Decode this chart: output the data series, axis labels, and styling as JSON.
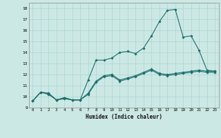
{
  "xlabel": "Humidex (Indice chaleur)",
  "xlim": [
    -0.5,
    23.5
  ],
  "ylim": [
    9,
    18.5
  ],
  "xticks": [
    0,
    1,
    2,
    3,
    4,
    5,
    6,
    7,
    8,
    9,
    10,
    11,
    12,
    13,
    14,
    15,
    16,
    17,
    18,
    19,
    20,
    21,
    22,
    23
  ],
  "yticks": [
    9,
    10,
    11,
    12,
    13,
    14,
    15,
    16,
    17,
    18
  ],
  "bg_color": "#cce8e5",
  "grid_color": "#aad4d0",
  "line_color": "#1a6e6a",
  "series1_x": [
    0,
    1,
    2,
    3,
    4,
    5,
    6,
    7,
    8,
    9,
    10,
    11,
    12,
    13,
    14,
    15,
    16,
    17,
    18,
    19,
    20,
    21,
    22,
    23
  ],
  "series1_y": [
    9.6,
    10.4,
    10.3,
    9.7,
    9.9,
    9.7,
    9.7,
    10.3,
    11.4,
    11.9,
    12.0,
    11.5,
    11.7,
    11.9,
    12.2,
    12.5,
    12.1,
    12.0,
    12.1,
    12.2,
    12.3,
    12.4,
    12.3,
    12.3
  ],
  "series2_x": [
    0,
    1,
    2,
    3,
    4,
    5,
    6,
    7,
    8,
    9,
    10,
    11,
    12,
    13,
    14,
    15,
    16,
    17,
    18,
    19,
    20,
    21,
    22,
    23
  ],
  "series2_y": [
    9.6,
    10.4,
    10.3,
    9.7,
    9.9,
    9.7,
    9.7,
    11.5,
    13.3,
    13.3,
    13.5,
    14.0,
    14.1,
    13.9,
    14.4,
    15.5,
    16.8,
    17.8,
    17.9,
    15.4,
    15.5,
    14.2,
    12.4,
    12.3
  ],
  "series3_x": [
    0,
    1,
    2,
    3,
    4,
    5,
    6,
    7,
    8,
    9,
    10,
    11,
    12,
    13,
    14,
    15,
    16,
    17,
    18,
    19,
    20,
    21,
    22,
    23
  ],
  "series3_y": [
    9.6,
    10.4,
    10.2,
    9.7,
    9.8,
    9.7,
    9.7,
    10.2,
    11.3,
    11.8,
    11.9,
    11.4,
    11.6,
    11.8,
    12.1,
    12.4,
    12.0,
    11.9,
    12.0,
    12.1,
    12.2,
    12.3,
    12.2,
    12.2
  ]
}
